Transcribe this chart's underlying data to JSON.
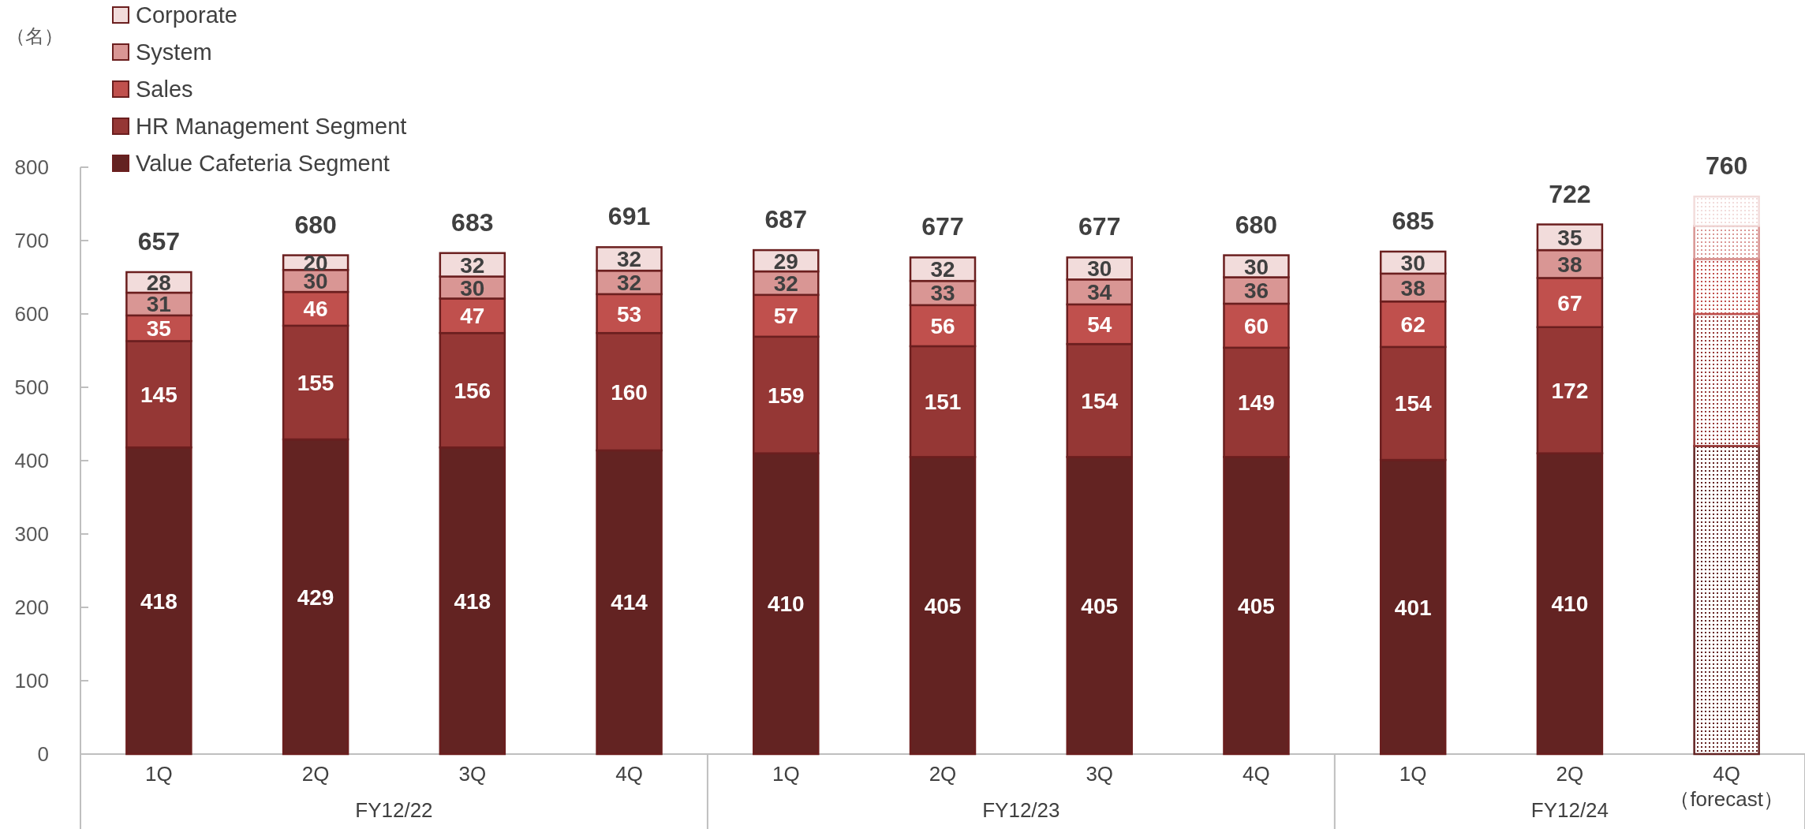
{
  "chart_data": {
    "type": "bar",
    "stacked": true,
    "categories": [
      "1Q",
      "2Q",
      "3Q",
      "4Q",
      "1Q",
      "2Q",
      "3Q",
      "4Q",
      "1Q",
      "2Q",
      "4Q （forecast）"
    ],
    "annotations": [
      "（名）",
      "FY12/22",
      "FY12/23",
      "FY12/24"
    ],
    "ylim": [
      0,
      800
    ],
    "yticks": [
      0,
      100,
      200,
      300,
      400,
      500,
      600,
      700,
      800
    ],
    "grid": false,
    "legend": "top left",
    "series": [
      {
        "name": "Value Cafeteria Segment",
        "color": "#632322",
        "values": [
          418,
          429,
          418,
          414,
          410,
          405,
          405,
          405,
          401,
          410,
          420
        ],
        "value_labels": [
          "418",
          "429",
          "418",
          "414",
          "410",
          "405",
          "405",
          "405",
          "401",
          "410",
          null
        ]
      },
      {
        "name": "HR Management Segment",
        "color": "#953735",
        "values": [
          145,
          155,
          156,
          160,
          159,
          151,
          154,
          149,
          154,
          172,
          180
        ],
        "value_labels": [
          "145",
          "155",
          "156",
          "160",
          "159",
          "151",
          "154",
          "149",
          "154",
          "172",
          null
        ]
      },
      {
        "name": "Sales",
        "color": "#c0504d",
        "values": [
          35,
          46,
          47,
          53,
          57,
          56,
          54,
          60,
          62,
          67,
          75
        ],
        "value_labels": [
          "35",
          "46",
          "47",
          "53",
          "57",
          "56",
          "54",
          "60",
          "62",
          "67",
          null
        ]
      },
      {
        "name": "System",
        "color": "#d99694",
        "values": [
          31,
          30,
          30,
          32,
          32,
          33,
          34,
          36,
          38,
          38,
          45
        ],
        "value_labels": [
          "31",
          "30",
          "30",
          "32",
          "32",
          "33",
          "34",
          "36",
          "38",
          "38",
          null
        ]
      },
      {
        "name": "Corporate",
        "color": "#f2dcdb",
        "values": [
          28,
          20,
          32,
          32,
          29,
          32,
          30,
          30,
          30,
          35,
          40
        ],
        "value_labels": [
          "28",
          "20",
          "32",
          "32",
          "29",
          "32",
          "30",
          "30",
          "30",
          "35",
          null
        ]
      }
    ],
    "totals": [
      "657",
      "680",
      "683",
      "691",
      "687",
      "677",
      "677",
      "680",
      "685",
      "722",
      "760"
    ]
  }
}
